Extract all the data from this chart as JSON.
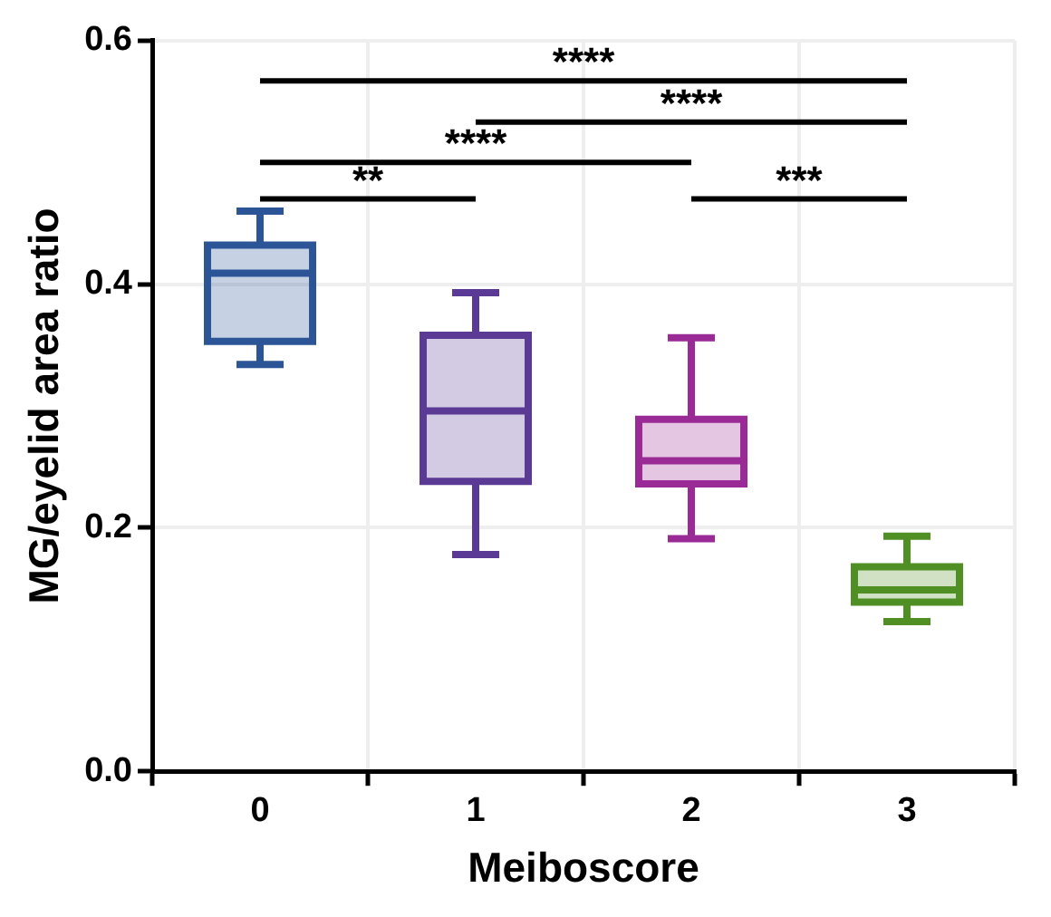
{
  "chart_data": {
    "type": "box",
    "xlabel": "Meiboscore",
    "ylabel": "MG/eyelid area ratio",
    "categories": [
      "0",
      "1",
      "2",
      "3"
    ],
    "colors": [
      "#2b5597",
      "#5b3a96",
      "#9a2a96",
      "#4f8f23"
    ],
    "boxes": [
      {
        "low": 0.334,
        "q1": 0.353,
        "median": 0.409,
        "q3": 0.432,
        "high": 0.46
      },
      {
        "low": 0.178,
        "q1": 0.238,
        "median": 0.296,
        "q3": 0.358,
        "high": 0.393
      },
      {
        "low": 0.191,
        "q1": 0.236,
        "median": 0.255,
        "q3": 0.289,
        "high": 0.356
      },
      {
        "low": 0.123,
        "q1": 0.139,
        "median": 0.149,
        "q3": 0.168,
        "high": 0.193
      }
    ],
    "ylim": [
      0,
      0.6
    ],
    "yticks": [
      {
        "value": 0,
        "label": "0.0"
      },
      {
        "value": 0.2,
        "label": "0.2"
      },
      {
        "value": 0.4,
        "label": "0.4"
      },
      {
        "value": 0.6,
        "label": "0.6"
      }
    ],
    "grid": true,
    "annotations": [
      "****",
      "****",
      "****",
      "**",
      "***"
    ]
  }
}
